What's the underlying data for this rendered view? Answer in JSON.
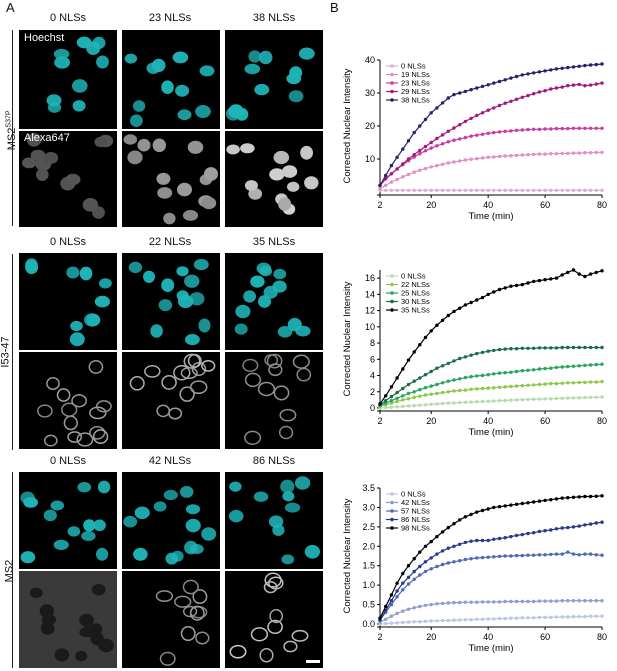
{
  "panels": {
    "a": "A",
    "b": "B"
  },
  "rows": [
    {
      "label": "MS2",
      "sup": "S37P",
      "columns": [
        "0 NLSs",
        "23 NLSs",
        "38 NLSs"
      ],
      "channels": [
        "Hoechst",
        "Alexa647"
      ]
    },
    {
      "label": "I53-47",
      "sup": "",
      "columns": [
        "0 NLSs",
        "22 NLSs",
        "35 NLSs"
      ]
    },
    {
      "label": "MS2",
      "sup": "",
      "columns": [
        "0 NLSs",
        "42 NLSs",
        "86 NLSs"
      ]
    }
  ],
  "colors": {
    "nuclei": "#1fb5b8",
    "background": "#000000"
  },
  "chart_data": [
    {
      "type": "line",
      "xlabel": "Time (min)",
      "ylabel": "Corrected Nuclear Intensity",
      "xlim": [
        2,
        80
      ],
      "ylim": [
        0,
        40
      ],
      "xticks": [
        2,
        20,
        40,
        60,
        80
      ],
      "yticks": [
        10,
        20,
        30,
        40
      ],
      "x": [
        2,
        4,
        6,
        8,
        10,
        12,
        14,
        16,
        18,
        20,
        22,
        24,
        26,
        28,
        30,
        32,
        34,
        36,
        38,
        40,
        42,
        44,
        46,
        48,
        50,
        52,
        54,
        56,
        58,
        60,
        62,
        64,
        66,
        68,
        70,
        72,
        74,
        76,
        78,
        80
      ],
      "legend": "top-left",
      "series": [
        {
          "name": "0 NLSs",
          "color": "#d9b0d8",
          "values": [
            0.5,
            0.5,
            0.5,
            0.5,
            0.5,
            0.5,
            0.5,
            0.5,
            0.5,
            0.5,
            0.5,
            0.5,
            0.5,
            0.5,
            0.5,
            0.5,
            0.5,
            0.5,
            0.5,
            0.5,
            0.5,
            0.5,
            0.5,
            0.5,
            0.5,
            0.5,
            0.5,
            0.5,
            0.5,
            0.5,
            0.5,
            0.5,
            0.5,
            0.5,
            0.5,
            0.5,
            0.5,
            0.5,
            0.5,
            0.5
          ]
        },
        {
          "name": "19 NLSs",
          "color": "#e48fc4",
          "values": [
            1,
            2,
            3,
            3.8,
            4.6,
            5.3,
            6,
            6.6,
            7.1,
            7.6,
            8,
            8.4,
            8.8,
            9.1,
            9.4,
            9.7,
            9.9,
            10.1,
            10.3,
            10.5,
            10.6,
            10.8,
            10.9,
            11,
            11.1,
            11.2,
            11.3,
            11.4,
            11.5,
            11.5,
            11.6,
            11.6,
            11.7,
            11.7,
            11.8,
            11.8,
            11.9,
            11.9,
            12,
            12
          ]
        },
        {
          "name": "23 NLSs",
          "color": "#c93aa3",
          "values": [
            2,
            4,
            5.5,
            7,
            8.3,
            9.5,
            10.6,
            11.6,
            12.5,
            13.3,
            14,
            14.6,
            15.2,
            15.7,
            16.1,
            16.5,
            16.9,
            17.2,
            17.5,
            17.8,
            18,
            18.2,
            18.4,
            18.5,
            18.7,
            18.8,
            18.9,
            19,
            19,
            19.1,
            19.1,
            19.2,
            19.2,
            19.2,
            19.3,
            19.3,
            19.3,
            19.3,
            19.3,
            19.3
          ]
        },
        {
          "name": "29 NLSs",
          "color": "#a0197f",
          "values": [
            2,
            4,
            5.5,
            7,
            8.5,
            10,
            11.3,
            12.6,
            13.8,
            15,
            16.2,
            17.3,
            18.4,
            19.4,
            20.4,
            21.4,
            22.3,
            23.2,
            24,
            24.8,
            25.5,
            26.2,
            26.9,
            27.5,
            28.1,
            28.7,
            29.2,
            29.8,
            30.3,
            30.7,
            31.2,
            31.5,
            31.8,
            32.2,
            32.4,
            32.6,
            32.2,
            32.4,
            32.7,
            33
          ]
        },
        {
          "name": "38 NLSs",
          "color": "#2a1f68",
          "values": [
            2,
            5,
            8,
            10.5,
            13,
            15.5,
            18,
            20,
            22,
            24,
            25.5,
            27,
            28.5,
            29.5,
            30,
            30.5,
            31,
            31.5,
            32,
            32.5,
            33,
            33.5,
            34,
            34.5,
            35,
            35.5,
            35.8,
            36.1,
            36.4,
            36.7,
            37,
            37.3,
            37.5,
            37.7,
            37.9,
            38.1,
            38.3,
            38.5,
            38.6,
            38.8
          ]
        }
      ]
    },
    {
      "type": "line",
      "xlabel": "Time (min)",
      "ylabel": "Corrected Nuclear Intensity",
      "xlim": [
        2,
        80
      ],
      "ylim": [
        0,
        17
      ],
      "xticks": [
        2,
        20,
        40,
        60,
        80
      ],
      "yticks": [
        0,
        2,
        4,
        6,
        8,
        10,
        12,
        14,
        16
      ],
      "x": [
        2,
        4,
        6,
        8,
        10,
        12,
        14,
        16,
        18,
        20,
        22,
        24,
        26,
        28,
        30,
        32,
        34,
        36,
        38,
        40,
        42,
        44,
        46,
        48,
        50,
        52,
        54,
        56,
        58,
        60,
        62,
        64,
        66,
        68,
        70,
        72,
        74,
        76,
        78,
        80
      ],
      "legend": "top-left",
      "series": [
        {
          "name": "0 NLSs",
          "color": "#b6dcae",
          "values": [
            0,
            0.05,
            0.1,
            0.15,
            0.2,
            0.25,
            0.3,
            0.35,
            0.4,
            0.45,
            0.5,
            0.55,
            0.6,
            0.63,
            0.66,
            0.7,
            0.73,
            0.76,
            0.8,
            0.83,
            0.86,
            0.9,
            0.93,
            0.96,
            1,
            1.02,
            1.05,
            1.08,
            1.1,
            1.12,
            1.15,
            1.17,
            1.2,
            1.22,
            1.24,
            1.26,
            1.28,
            1.3,
            1.32,
            1.35
          ]
        },
        {
          "name": "22 NLSs",
          "color": "#8cc94d",
          "values": [
            0.2,
            0.4,
            0.6,
            0.8,
            1,
            1.15,
            1.3,
            1.45,
            1.6,
            1.7,
            1.8,
            1.9,
            2,
            2.1,
            2.15,
            2.2,
            2.3,
            2.35,
            2.4,
            2.45,
            2.5,
            2.55,
            2.6,
            2.65,
            2.7,
            2.75,
            2.8,
            2.85,
            2.9,
            2.95,
            3,
            3,
            3.05,
            3.1,
            3.1,
            3.15,
            3.15,
            3.2,
            3.2,
            3.25
          ]
        },
        {
          "name": "25 NLSs",
          "color": "#27a55b",
          "values": [
            0.3,
            0.6,
            0.9,
            1.2,
            1.5,
            1.8,
            2,
            2.25,
            2.5,
            2.7,
            2.9,
            3.1,
            3.3,
            3.45,
            3.6,
            3.75,
            3.85,
            3.95,
            4,
            4.1,
            4.2,
            4.3,
            4.35,
            4.4,
            4.5,
            4.6,
            4.65,
            4.7,
            4.8,
            4.85,
            4.9,
            5,
            5.05,
            5.1,
            5.15,
            5.2,
            5.25,
            5.3,
            5.35,
            5.4
          ]
        },
        {
          "name": "30 NLSs",
          "color": "#1b6b45",
          "values": [
            0.4,
            0.9,
            1.4,
            1.9,
            2.4,
            2.9,
            3.3,
            3.7,
            4.1,
            4.5,
            4.9,
            5.2,
            5.5,
            5.8,
            6.1,
            6.3,
            6.5,
            6.7,
            6.85,
            7,
            7.1,
            7.2,
            7.25,
            7.3,
            7.3,
            7.35,
            7.35,
            7.35,
            7.4,
            7.4,
            7.4,
            7.4,
            7.45,
            7.45,
            7.45,
            7.45,
            7.45,
            7.45,
            7.45,
            7.45
          ]
        },
        {
          "name": "35 NLSs",
          "color": "#000000",
          "values": [
            0.5,
            1.5,
            2.6,
            3.7,
            4.8,
            5.9,
            6.9,
            7.8,
            8.7,
            9.5,
            10.2,
            10.8,
            11.4,
            11.9,
            12.3,
            12.7,
            13,
            13.3,
            13.6,
            14,
            14.3,
            14.6,
            14.8,
            15,
            15.1,
            15.2,
            15.4,
            15.6,
            15.7,
            15.8,
            15.9,
            16,
            16.4,
            16.7,
            17,
            16.5,
            16.2,
            16.5,
            16.7,
            16.9
          ]
        }
      ]
    },
    {
      "type": "line",
      "xlabel": "Time (min)",
      "ylabel": "Corrected Nuclear Intensity",
      "xlim": [
        2,
        80
      ],
      "ylim": [
        0,
        3.5
      ],
      "xticks": [
        2,
        20,
        40,
        60,
        80
      ],
      "yticks": [
        0,
        0.5,
        1,
        1.5,
        2,
        2.5,
        3,
        3.5
      ],
      "x": [
        2,
        4,
        6,
        8,
        10,
        12,
        14,
        16,
        18,
        20,
        22,
        24,
        26,
        28,
        30,
        32,
        34,
        36,
        38,
        40,
        42,
        44,
        46,
        48,
        50,
        52,
        54,
        56,
        58,
        60,
        62,
        64,
        66,
        68,
        70,
        72,
        74,
        76,
        78,
        80
      ],
      "legend": "top-left",
      "series": [
        {
          "name": "0 NLSs",
          "color": "#bcc6e6",
          "values": [
            0,
            0.01,
            0.02,
            0.03,
            0.04,
            0.05,
            0.06,
            0.06,
            0.07,
            0.08,
            0.08,
            0.09,
            0.09,
            0.1,
            0.1,
            0.11,
            0.11,
            0.12,
            0.12,
            0.13,
            0.13,
            0.14,
            0.14,
            0.15,
            0.15,
            0.16,
            0.16,
            0.16,
            0.17,
            0.17,
            0.17,
            0.18,
            0.18,
            0.18,
            0.19,
            0.19,
            0.19,
            0.2,
            0.2,
            0.2
          ]
        },
        {
          "name": "42 NLSs",
          "color": "#8b9dd3",
          "values": [
            0.05,
            0.12,
            0.2,
            0.27,
            0.33,
            0.38,
            0.42,
            0.45,
            0.48,
            0.5,
            0.52,
            0.53,
            0.54,
            0.55,
            0.55,
            0.56,
            0.56,
            0.56,
            0.57,
            0.57,
            0.57,
            0.57,
            0.58,
            0.58,
            0.58,
            0.58,
            0.58,
            0.58,
            0.59,
            0.59,
            0.59,
            0.59,
            0.6,
            0.6,
            0.6,
            0.6,
            0.6,
            0.6,
            0.6,
            0.6
          ]
        },
        {
          "name": "57 NLSs",
          "color": "#4e69b4",
          "values": [
            0.1,
            0.3,
            0.5,
            0.7,
            0.88,
            1.03,
            1.15,
            1.26,
            1.35,
            1.42,
            1.48,
            1.53,
            1.57,
            1.6,
            1.63,
            1.66,
            1.68,
            1.7,
            1.71,
            1.72,
            1.73,
            1.74,
            1.75,
            1.75,
            1.76,
            1.76,
            1.77,
            1.77,
            1.78,
            1.78,
            1.79,
            1.8,
            1.8,
            1.85,
            1.8,
            1.78,
            1.8,
            1.8,
            1.78,
            1.77
          ]
        },
        {
          "name": "86 NLSs",
          "color": "#27398e",
          "values": [
            0.1,
            0.35,
            0.6,
            0.85,
            1.05,
            1.2,
            1.35,
            1.48,
            1.6,
            1.7,
            1.8,
            1.88,
            1.95,
            2,
            2.05,
            2.1,
            2.13,
            2.15,
            2.15,
            2.15,
            2.18,
            2.2,
            2.22,
            2.25,
            2.28,
            2.3,
            2.33,
            2.35,
            2.38,
            2.4,
            2.42,
            2.45,
            2.47,
            2.48,
            2.5,
            2.52,
            2.55,
            2.57,
            2.6,
            2.62
          ]
        },
        {
          "name": "98 NLSs",
          "color": "#000000",
          "values": [
            0.15,
            0.45,
            0.75,
            1.05,
            1.3,
            1.5,
            1.68,
            1.85,
            2,
            2.12,
            2.25,
            2.37,
            2.48,
            2.58,
            2.68,
            2.76,
            2.82,
            2.88,
            2.92,
            2.96,
            3,
            3.02,
            3.04,
            3.06,
            3.08,
            3.1,
            3.12,
            3.14,
            3.16,
            3.18,
            3.2,
            3.22,
            3.24,
            3.25,
            3.26,
            3.27,
            3.28,
            3.28,
            3.29,
            3.3
          ]
        }
      ]
    }
  ]
}
